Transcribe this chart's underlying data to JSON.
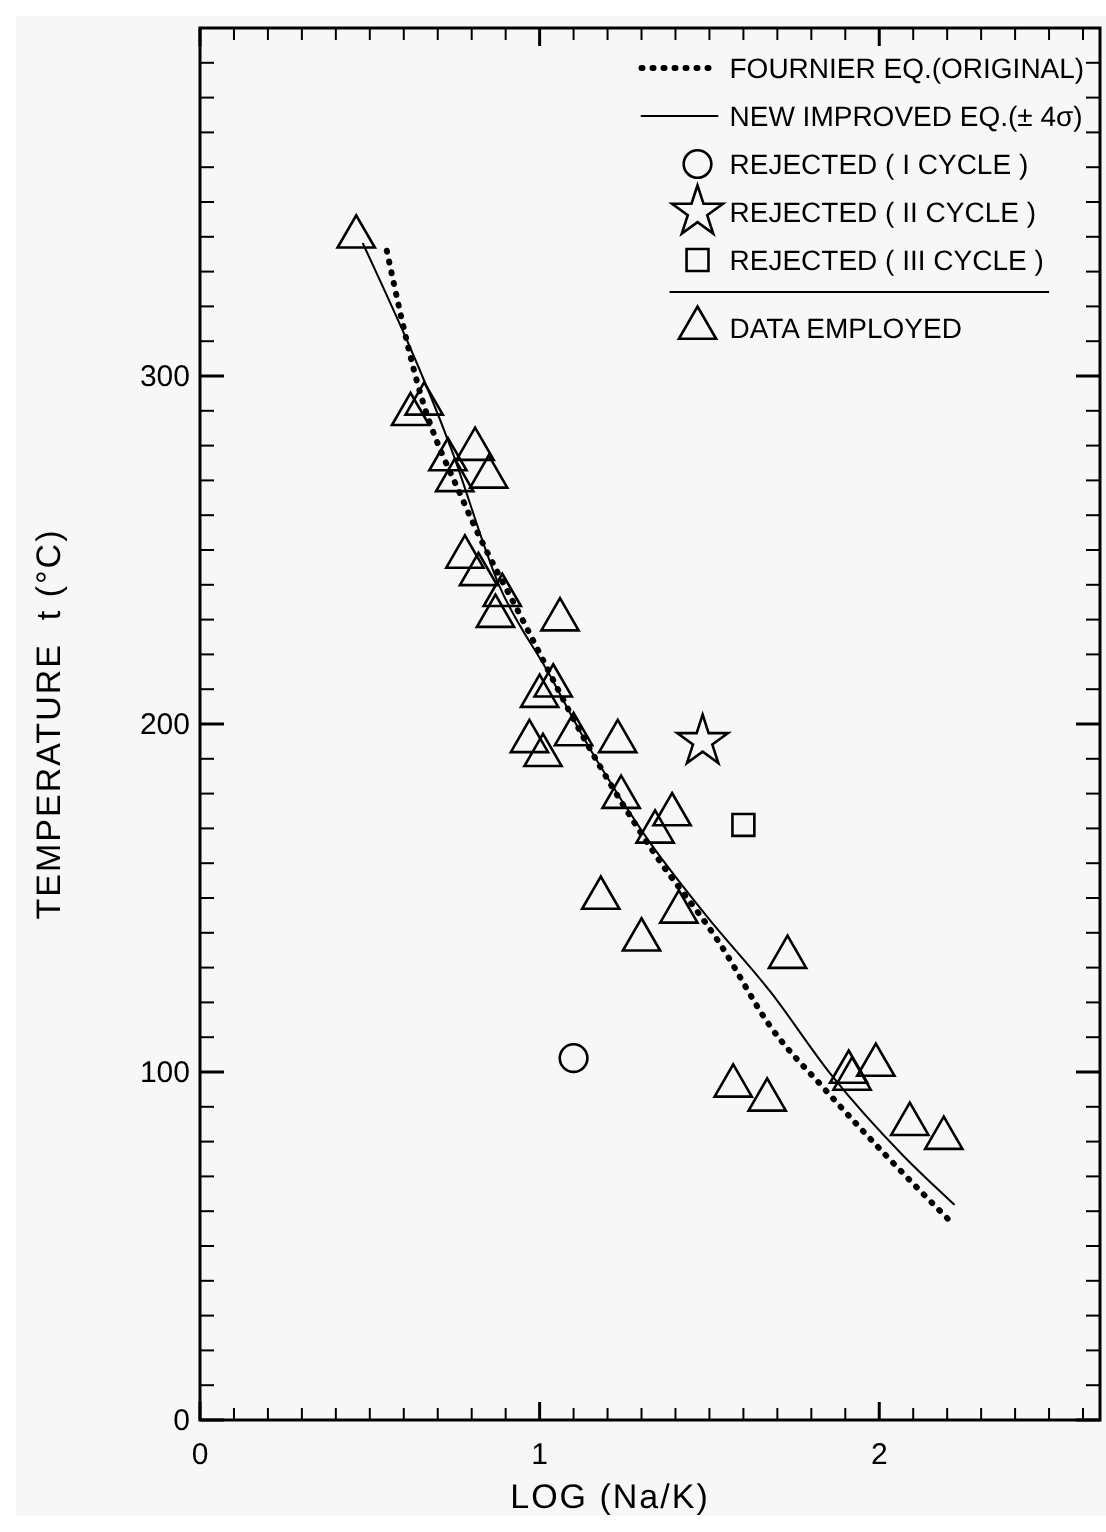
{
  "chart_data": {
    "type": "scatter",
    "xlabel": "LOG (Na/K)",
    "ylabel": "TEMPERATURE  t (°C)",
    "xlim": [
      0,
      2.65
    ],
    "ylim": [
      0,
      400
    ],
    "xticks": [
      0,
      {
        "value": 0.1,
        "label": null
      },
      {
        "value": 0.2,
        "label": null
      },
      {
        "value": 0.3,
        "label": null
      },
      {
        "value": 0.4,
        "label": null
      },
      {
        "value": 0.5,
        "label": null
      },
      {
        "value": 0.6,
        "label": null
      },
      {
        "value": 0.7,
        "label": null
      },
      {
        "value": 0.8,
        "label": null
      },
      {
        "value": 0.9,
        "label": null
      },
      1,
      {
        "value": 1.1,
        "label": null
      },
      {
        "value": 1.2,
        "label": null
      },
      {
        "value": 1.3,
        "label": null
      },
      {
        "value": 1.4,
        "label": null
      },
      {
        "value": 1.5,
        "label": null
      },
      {
        "value": 1.6,
        "label": null
      },
      {
        "value": 1.7,
        "label": null
      },
      {
        "value": 1.8,
        "label": null
      },
      {
        "value": 1.9,
        "label": null
      },
      2,
      {
        "value": 2.1,
        "label": null
      },
      {
        "value": 2.2,
        "label": null
      },
      {
        "value": 2.3,
        "label": null
      },
      {
        "value": 2.4,
        "label": null
      },
      {
        "value": 2.5,
        "label": null
      },
      {
        "value": 2.6,
        "label": null
      }
    ],
    "yticks": [
      0,
      {
        "value": 10,
        "label": null
      },
      {
        "value": 20,
        "label": null
      },
      {
        "value": 30,
        "label": null
      },
      {
        "value": 40,
        "label": null
      },
      {
        "value": 50,
        "label": null
      },
      {
        "value": 60,
        "label": null
      },
      {
        "value": 70,
        "label": null
      },
      {
        "value": 80,
        "label": null
      },
      {
        "value": 90,
        "label": null
      },
      100,
      {
        "value": 110,
        "label": null
      },
      {
        "value": 120,
        "label": null
      },
      {
        "value": 130,
        "label": null
      },
      {
        "value": 140,
        "label": null
      },
      {
        "value": 150,
        "label": null
      },
      {
        "value": 160,
        "label": null
      },
      {
        "value": 170,
        "label": null
      },
      {
        "value": 180,
        "label": null
      },
      {
        "value": 190,
        "label": null
      },
      200,
      {
        "value": 210,
        "label": null
      },
      {
        "value": 220,
        "label": null
      },
      {
        "value": 230,
        "label": null
      },
      {
        "value": 240,
        "label": null
      },
      {
        "value": 250,
        "label": null
      },
      {
        "value": 260,
        "label": null
      },
      {
        "value": 270,
        "label": null
      },
      {
        "value": 280,
        "label": null
      },
      {
        "value": 290,
        "label": null
      },
      300,
      {
        "value": 310,
        "label": null
      },
      {
        "value": 320,
        "label": null
      },
      {
        "value": 330,
        "label": null
      },
      {
        "value": 340,
        "label": null
      },
      {
        "value": 350,
        "label": null
      },
      {
        "value": 360,
        "label": null
      },
      {
        "value": 370,
        "label": null
      },
      {
        "value": 380,
        "label": null
      },
      {
        "value": 390,
        "label": null
      },
      {
        "value": 400,
        "label": null
      }
    ],
    "legend": "top right",
    "grid": false,
    "series": [
      {
        "name": "FOURNIER EQ.(ORIGINAL)",
        "type": "line",
        "line_style": "dotted",
        "marker": "none",
        "color": "#000000",
        "x": [
          0.55,
          0.64,
          0.78,
          0.96,
          1.13,
          1.33,
          1.53,
          1.68,
          1.84,
          2.02,
          2.21
        ],
        "values": [
          336,
          298,
          263,
          228,
          196,
          164,
          137,
          113,
          95,
          76,
          57
        ]
      },
      {
        "name": "NEW IMPROVED EQ.(± 4σ)",
        "type": "line",
        "line_style": "solid",
        "marker": "none",
        "color": "#000000",
        "x": [
          0.48,
          0.74,
          0.88,
          1.03,
          1.13,
          1.31,
          1.49,
          1.68,
          1.86,
          2.07,
          2.22
        ],
        "values": [
          338,
          279,
          240,
          214,
          196,
          168,
          145,
          123,
          99,
          76,
          62
        ]
      },
      {
        "name": "REJECTED ( I CYCLE )",
        "marker": "circle",
        "color": "#000000",
        "x": [
          1.1
        ],
        "values": [
          104
        ]
      },
      {
        "name": "REJECTED ( II CYCLE )",
        "marker": "star",
        "color": "#000000",
        "x": [
          1.48
        ],
        "values": [
          195
        ]
      },
      {
        "name": "REJECTED ( III CYCLE )",
        "marker": "square",
        "color": "#000000",
        "x": [
          1.6
        ],
        "values": [
          171
        ]
      },
      {
        "name": "DATA EMPLOYED",
        "marker": "triangle",
        "color": "#000000",
        "x": [
          0.46,
          0.62,
          0.66,
          0.81,
          0.73,
          0.75,
          0.85,
          0.78,
          0.82,
          0.89,
          0.87,
          1.06,
          1.04,
          1.0,
          0.97,
          1.01,
          1.1,
          1.23,
          1.24,
          1.34,
          1.39,
          1.18,
          1.3,
          1.41,
          1.73,
          1.57,
          1.67,
          1.91,
          1.92,
          1.99,
          2.09,
          2.19
        ],
        "values": [
          340,
          289,
          292,
          279,
          276,
          270,
          271,
          248,
          243,
          237,
          231,
          230,
          211,
          208,
          195,
          191,
          197,
          195,
          179,
          169,
          174,
          150,
          138,
          146,
          133,
          96,
          92,
          100,
          98,
          102,
          85,
          81
        ]
      }
    ]
  }
}
